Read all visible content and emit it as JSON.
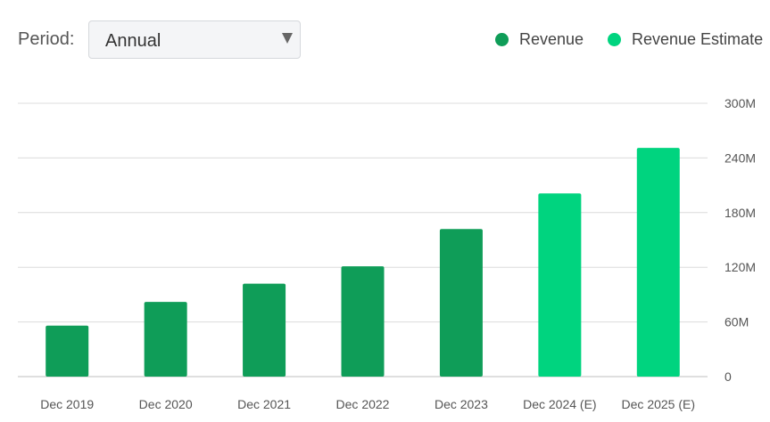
{
  "controls": {
    "period_label": "Period:",
    "period_value": "Annual"
  },
  "legend": [
    {
      "label": "Revenue",
      "color": "#0f9d58"
    },
    {
      "label": "Revenue Estimate",
      "color": "#00d47f"
    }
  ],
  "chart_data": {
    "type": "bar",
    "categories": [
      "Dec 2019",
      "Dec 2020",
      "Dec 2021",
      "Dec 2022",
      "Dec 2023",
      "Dec 2024 (E)",
      "Dec 2025 (E)"
    ],
    "values": [
      56,
      82,
      102,
      121,
      162,
      201,
      251
    ],
    "series_for_category": [
      "Revenue",
      "Revenue",
      "Revenue",
      "Revenue",
      "Revenue",
      "Revenue Estimate",
      "Revenue Estimate"
    ],
    "y_ticks": [
      0,
      60,
      120,
      180,
      240,
      300
    ],
    "y_tick_labels": [
      "0",
      "60M",
      "120M",
      "180M",
      "240M",
      "300M"
    ],
    "ylim": [
      0,
      300
    ],
    "y_axis_position": "right",
    "grid": true,
    "legend_position": "top-right",
    "title": "",
    "xlabel": "",
    "ylabel": ""
  }
}
